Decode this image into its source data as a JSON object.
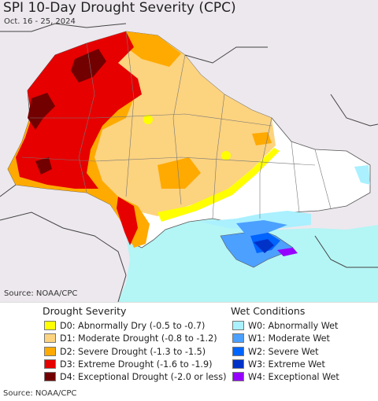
{
  "map": {
    "title": "SPI 10-Day Drought Severity (CPC)",
    "date_range": "Oct. 16 - 25, 2024",
    "source_map": "Source: NOAA/CPC"
  },
  "legend": {
    "drought_title": "Drought Severity",
    "wet_title": "Wet Conditions",
    "drought_items": [
      {
        "code": "D0",
        "label": "D0: Abnormally Dry (-0.5 to -0.7)",
        "color": "#ffff00"
      },
      {
        "code": "D1",
        "label": "D1: Moderate Drought (-0.8 to -1.2)",
        "color": "#fcd37f"
      },
      {
        "code": "D2",
        "label": "D2: Severe Drought (-1.3 to -1.5)",
        "color": "#ffaa00"
      },
      {
        "code": "D3",
        "label": "D3: Extreme Drought (-1.6 to -1.9)",
        "color": "#e60000"
      },
      {
        "code": "D4",
        "label": "D4: Exceptional Drought (-2.0 or less)",
        "color": "#730000"
      }
    ],
    "wet_items": [
      {
        "code": "W0",
        "label": "W0: Abnormally Wet",
        "color": "#aaf0ff"
      },
      {
        "code": "W1",
        "label": "W1: Moderate Wet",
        "color": "#4ca0ff"
      },
      {
        "code": "W2",
        "label": "W2: Severe Wet",
        "color": "#0064ff"
      },
      {
        "code": "W3",
        "label": "W3: Extreme Wet",
        "color": "#0032c8"
      },
      {
        "code": "W4",
        "label": "W4: Exceptional Wet",
        "color": "#9600ff"
      }
    ]
  },
  "footer": {
    "source": "Source: NOAA/CPC"
  },
  "colors": {
    "sea": "#b4f5f5",
    "land_outside": "#ede8ee",
    "no_drought": "#ffffff",
    "border": "#555555"
  }
}
